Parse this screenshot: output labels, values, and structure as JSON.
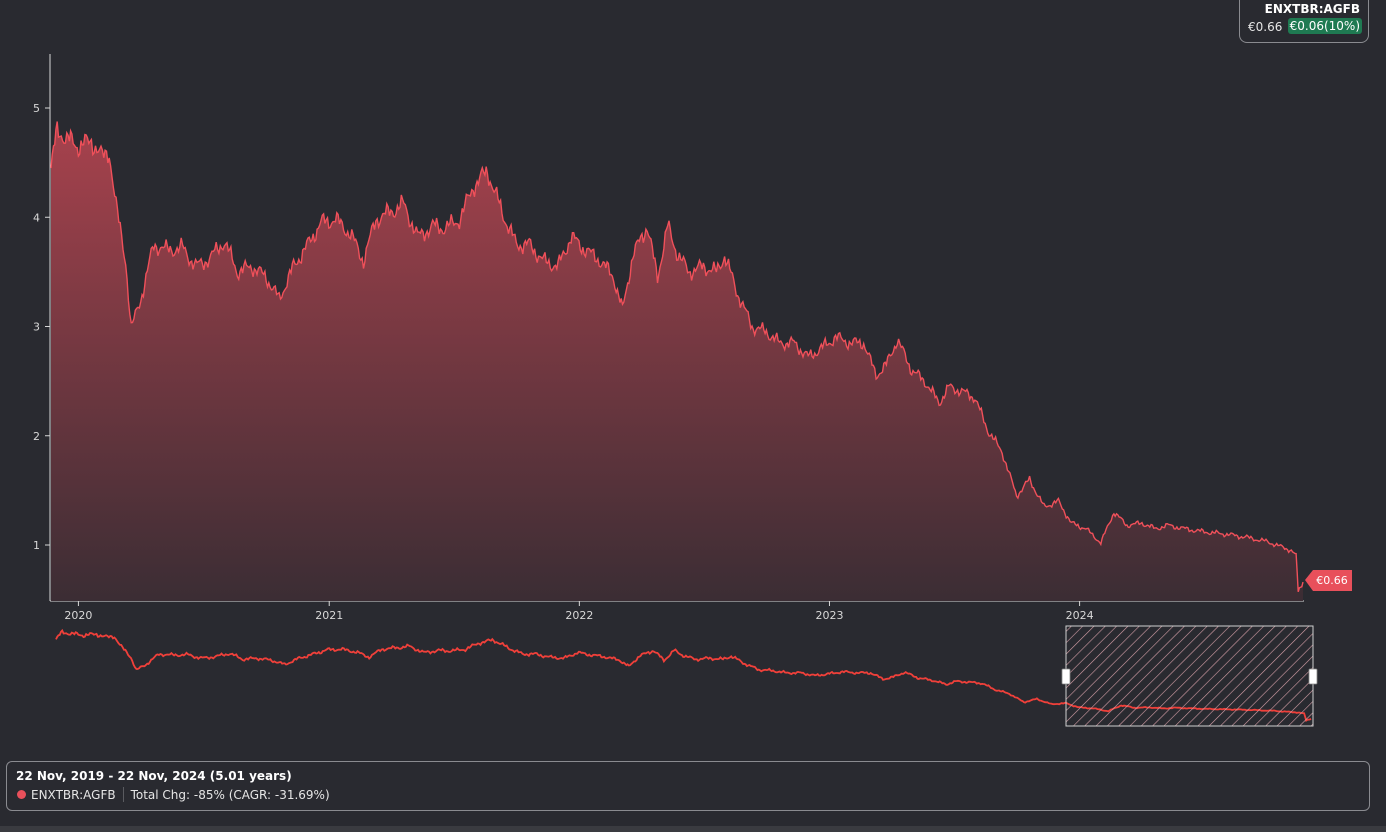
{
  "ticker": {
    "symbol": "ENXTBR:AGFB",
    "price": "€0.66",
    "change": "€0.06(10%)",
    "change_color": "#1f7a52"
  },
  "footer": {
    "range": "22 Nov, 2019 - 22 Nov, 2024 (5.01 years)",
    "series_label": "ENXTBR:AGFB",
    "total_change": "Total Chg: -85% (CAGR: -31.69%)"
  },
  "colors": {
    "line": "#f0505a",
    "fill_top": "#a8424d",
    "fill_bottom": "#3b2d34",
    "background": "#292a30",
    "axis": "#d8d8d8"
  },
  "chart_data": {
    "type": "area",
    "title": "",
    "xlabel": "",
    "ylabel": "",
    "x_ticks": [
      "2020",
      "2021",
      "2022",
      "2023",
      "2024"
    ],
    "y_ticks": [
      1,
      2,
      3,
      4,
      5
    ],
    "ylim": [
      0.5,
      5.5
    ],
    "xlim": [
      "2019-11-22",
      "2024-11-22"
    ],
    "last_value_label": "€0.66",
    "series": [
      {
        "name": "ENXTBR:AGFB",
        "points": [
          [
            "2019-11-22",
            4.45
          ],
          [
            "2019-12-01",
            4.8
          ],
          [
            "2019-12-15",
            4.72
          ],
          [
            "2020-01-01",
            4.65
          ],
          [
            "2020-01-20",
            4.7
          ],
          [
            "2020-02-05",
            4.55
          ],
          [
            "2020-02-15",
            4.6
          ],
          [
            "2020-02-25",
            4.1
          ],
          [
            "2020-03-10",
            3.6
          ],
          [
            "2020-03-18",
            2.98
          ],
          [
            "2020-04-01",
            3.25
          ],
          [
            "2020-04-20",
            3.75
          ],
          [
            "2020-05-10",
            3.7
          ],
          [
            "2020-06-01",
            3.72
          ],
          [
            "2020-06-20",
            3.55
          ],
          [
            "2020-07-10",
            3.62
          ],
          [
            "2020-08-01",
            3.78
          ],
          [
            "2020-08-20",
            3.5
          ],
          [
            "2020-09-10",
            3.55
          ],
          [
            "2020-10-01",
            3.45
          ],
          [
            "2020-10-20",
            3.25
          ],
          [
            "2020-11-10",
            3.55
          ],
          [
            "2020-12-01",
            3.75
          ],
          [
            "2020-12-20",
            3.95
          ],
          [
            "2021-01-10",
            3.98
          ],
          [
            "2021-02-01",
            3.85
          ],
          [
            "2021-02-20",
            3.6
          ],
          [
            "2021-03-10",
            3.98
          ],
          [
            "2021-04-01",
            4.05
          ],
          [
            "2021-04-20",
            4.12
          ],
          [
            "2021-05-10",
            3.82
          ],
          [
            "2021-06-01",
            3.92
          ],
          [
            "2021-06-20",
            3.9
          ],
          [
            "2021-07-10",
            3.98
          ],
          [
            "2021-08-01",
            4.3
          ],
          [
            "2021-08-20",
            4.42
          ],
          [
            "2021-09-10",
            4.05
          ],
          [
            "2021-10-01",
            3.75
          ],
          [
            "2021-10-20",
            3.75
          ],
          [
            "2021-11-10",
            3.6
          ],
          [
            "2021-12-01",
            3.55
          ],
          [
            "2021-12-20",
            3.82
          ],
          [
            "2022-01-10",
            3.7
          ],
          [
            "2022-02-01",
            3.6
          ],
          [
            "2022-02-20",
            3.45
          ],
          [
            "2022-03-05",
            3.15
          ],
          [
            "2022-03-20",
            3.65
          ],
          [
            "2022-04-10",
            3.92
          ],
          [
            "2022-04-25",
            3.45
          ],
          [
            "2022-05-10",
            3.92
          ],
          [
            "2022-05-25",
            3.65
          ],
          [
            "2022-06-10",
            3.5
          ],
          [
            "2022-07-01",
            3.55
          ],
          [
            "2022-07-20",
            3.5
          ],
          [
            "2022-08-01",
            3.65
          ],
          [
            "2022-08-20",
            3.3
          ],
          [
            "2022-09-10",
            3.0
          ],
          [
            "2022-10-01",
            2.95
          ],
          [
            "2022-10-20",
            2.85
          ],
          [
            "2022-11-10",
            2.85
          ],
          [
            "2022-12-01",
            2.72
          ],
          [
            "2022-12-20",
            2.8
          ],
          [
            "2023-01-10",
            2.9
          ],
          [
            "2023-02-01",
            2.85
          ],
          [
            "2023-02-20",
            2.85
          ],
          [
            "2023-03-10",
            2.55
          ],
          [
            "2023-03-25",
            2.65
          ],
          [
            "2023-04-10",
            2.88
          ],
          [
            "2023-05-01",
            2.6
          ],
          [
            "2023-05-20",
            2.5
          ],
          [
            "2023-06-10",
            2.3
          ],
          [
            "2023-06-25",
            2.45
          ],
          [
            "2023-07-15",
            2.4
          ],
          [
            "2023-08-01",
            2.35
          ],
          [
            "2023-08-20",
            2.05
          ],
          [
            "2023-09-10",
            1.85
          ],
          [
            "2023-10-01",
            1.45
          ],
          [
            "2023-10-20",
            1.6
          ],
          [
            "2023-11-10",
            1.35
          ],
          [
            "2023-12-01",
            1.4
          ],
          [
            "2023-12-20",
            1.2
          ],
          [
            "2024-01-10",
            1.15
          ],
          [
            "2024-02-01",
            1.02
          ],
          [
            "2024-02-20",
            1.3
          ],
          [
            "2024-03-10",
            1.18
          ],
          [
            "2024-04-01",
            1.2
          ],
          [
            "2024-04-20",
            1.15
          ],
          [
            "2024-05-10",
            1.18
          ],
          [
            "2024-06-01",
            1.15
          ],
          [
            "2024-07-01",
            1.12
          ],
          [
            "2024-08-01",
            1.1
          ],
          [
            "2024-09-01",
            1.07
          ],
          [
            "2024-10-01",
            1.03
          ],
          [
            "2024-11-05",
            0.95
          ],
          [
            "2024-11-12",
            0.9
          ],
          [
            "2024-11-15",
            0.58
          ],
          [
            "2024-11-22",
            0.66
          ]
        ]
      }
    ]
  }
}
